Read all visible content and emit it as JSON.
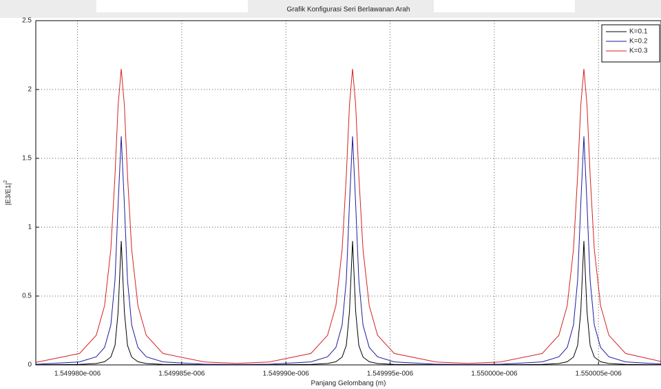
{
  "chart_data": {
    "type": "line",
    "title": "Grafik Konfigurasi Seri Berlawanan Arah",
    "xlabel": "Panjang Gelombang (m)",
    "ylabel": {
      "text": "|E3/E1|",
      "superscript": "2"
    },
    "xlim": [
      1.549978e-06,
      1.550008e-06
    ],
    "ylim": [
      0,
      2.5
    ],
    "xticks": [
      {
        "value": 1.54998e-06,
        "label": "1.549980e-006"
      },
      {
        "value": 1.549985e-06,
        "label": "1.549985e-006"
      },
      {
        "value": 1.54999e-06,
        "label": "1.549990e-006"
      },
      {
        "value": 1.549995e-06,
        "label": "1.549995e-006"
      },
      {
        "value": 1.55e-06,
        "label": "1.550000e-006"
      },
      {
        "value": 1.550005e-06,
        "label": "1.550005e-006"
      }
    ],
    "yticks": [
      0,
      {
        "value": 0.5,
        "label": "0.5"
      },
      1,
      {
        "value": 1.5,
        "label": "1.5"
      },
      2,
      {
        "value": 2.5,
        "label": "2.5"
      }
    ],
    "grid": true,
    "legend": "top-right",
    "x": [
      1.549978e-06,
      1.5499781e-06,
      1.5499801e-06,
      1.5499809e-06,
      1.5499813e-06,
      1.5499816e-06,
      1.5499818e-06,
      1.54998195e-06,
      1.5499821e-06,
      1.54998225e-06,
      1.5499824e-06,
      1.5499826e-06,
      1.5499829e-06,
      1.5499833e-06,
      1.5499841e-06,
      1.5499861e-06,
      1.54998765e-06,
      1.5499892e-06,
      1.5499912e-06,
      1.549992e-06,
      1.5499924e-06,
      1.5499927e-06,
      1.5499929e-06,
      1.54999305e-06,
      1.5499932e-06,
      1.54999335e-06,
      1.5499935e-06,
      1.5499937e-06,
      1.549994e-06,
      1.5499944e-06,
      1.5499952e-06,
      1.5499972e-06,
      1.54999875e-06,
      1.5500003e-06,
      1.5500023e-06,
      1.5500031e-06,
      1.5500035e-06,
      1.5500038e-06,
      1.550004e-06,
      1.55000415e-06,
      1.5500043e-06,
      1.55000445e-06,
      1.5500046e-06,
      1.5500048e-06,
      1.5500051e-06,
      1.5500055e-06,
      1.5500063e-06,
      1.550008e-06
    ],
    "series": [
      {
        "name": "K=0.1",
        "color": "#000000",
        "values": [
          0.001,
          0.001,
          0.004,
          0.01,
          0.023,
          0.057,
          0.142,
          0.386,
          0.9,
          0.386,
          0.142,
          0.057,
          0.023,
          0.01,
          0.004,
          0.001,
          0,
          0.001,
          0.004,
          0.01,
          0.023,
          0.057,
          0.142,
          0.386,
          0.9,
          0.386,
          0.142,
          0.057,
          0.023,
          0.01,
          0.004,
          0.001,
          0,
          0.001,
          0.004,
          0.01,
          0.023,
          0.057,
          0.142,
          0.386,
          0.9,
          0.386,
          0.142,
          0.057,
          0.023,
          0.01,
          0.004,
          0.001
        ]
      },
      {
        "name": "K=0.2",
        "color": "#1a1a9c",
        "values": [
          0.005,
          0.005,
          0.022,
          0.059,
          0.127,
          0.29,
          0.615,
          1.165,
          1.66,
          1.165,
          0.615,
          0.29,
          0.127,
          0.059,
          0.022,
          0.005,
          0.003,
          0.005,
          0.022,
          0.059,
          0.127,
          0.29,
          0.615,
          1.165,
          1.66,
          1.165,
          0.615,
          0.29,
          0.127,
          0.059,
          0.022,
          0.005,
          0.003,
          0.005,
          0.022,
          0.059,
          0.127,
          0.29,
          0.615,
          1.165,
          1.66,
          1.165,
          0.615,
          0.29,
          0.127,
          0.059,
          0.022,
          0.006
        ]
      },
      {
        "name": "K=0.3",
        "color": "#d42020",
        "values": [
          0.02,
          0.021,
          0.083,
          0.215,
          0.43,
          0.839,
          1.376,
          1.885,
          2.15,
          1.885,
          1.376,
          0.839,
          0.43,
          0.215,
          0.083,
          0.021,
          0.011,
          0.021,
          0.083,
          0.215,
          0.43,
          0.839,
          1.376,
          1.885,
          2.15,
          1.885,
          1.376,
          0.839,
          0.43,
          0.215,
          0.083,
          0.021,
          0.011,
          0.021,
          0.083,
          0.215,
          0.43,
          0.839,
          1.376,
          1.885,
          2.15,
          1.885,
          1.376,
          0.839,
          0.43,
          0.215,
          0.083,
          0.025
        ]
      }
    ]
  }
}
